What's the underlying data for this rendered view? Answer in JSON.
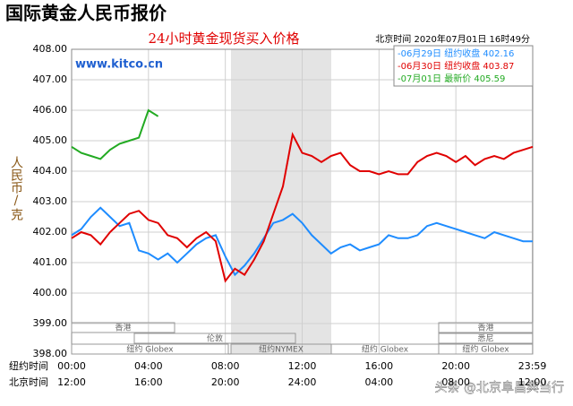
{
  "chart_data": {
    "type": "line",
    "title": "国际黄金人民币报价",
    "subtitle": "24小时黄金现货买入价格",
    "timestamp": "北京时间  2020年07月01日 16时49分",
    "source": "www.kitco.cn",
    "y_label": "人民币/克",
    "x_row_labels": [
      "纽约时间",
      "北京时间"
    ],
    "watermark": "头条 @北京阜昌典当行",
    "sessions": [
      "香港",
      "伦敦",
      "纽约 Globex",
      "纽约NYMEX",
      "纽约 Globex",
      "香港",
      "悉尼",
      "纽约 Globex"
    ],
    "x": [
      0,
      0.5,
      1,
      1.5,
      2,
      2.5,
      3,
      3.5,
      4,
      4.5,
      5,
      5.5,
      6,
      6.5,
      7,
      7.5,
      8,
      8.5,
      9,
      9.5,
      10,
      10.5,
      11,
      11.5,
      12,
      12.5,
      13,
      13.5,
      14,
      14.5,
      15,
      15.5,
      16,
      16.5,
      17,
      17.5,
      18,
      18.5,
      19,
      19.5,
      20,
      20.5,
      21,
      21.5,
      22,
      22.5,
      23,
      23.5,
      24
    ],
    "series": [
      {
        "name": "-06月29日  纽约收盘 402.16",
        "color": "#1e8cff",
        "values": [
          401.9,
          402.1,
          402.5,
          402.8,
          402.5,
          402.2,
          402.3,
          401.4,
          401.3,
          401.1,
          401.3,
          401.0,
          401.3,
          401.6,
          401.8,
          401.9,
          401.2,
          400.6,
          400.9,
          401.3,
          401.8,
          402.3,
          402.4,
          402.6,
          402.3,
          401.9,
          401.6,
          401.3,
          401.5,
          401.6,
          401.4,
          401.5,
          401.6,
          401.9,
          401.8,
          401.8,
          401.9,
          402.2,
          402.3,
          402.2,
          402.1,
          402.0,
          401.9,
          401.8,
          402.0,
          401.9,
          401.8,
          401.7,
          401.7
        ]
      },
      {
        "name": "-06月30日  纽约收盘 403.87",
        "color": "#e00000",
        "values": [
          401.8,
          402.0,
          401.9,
          401.6,
          402.0,
          402.3,
          402.6,
          402.7,
          402.4,
          402.3,
          401.9,
          401.8,
          401.5,
          401.8,
          402.0,
          401.7,
          400.4,
          400.8,
          400.6,
          401.1,
          401.7,
          402.6,
          403.5,
          405.2,
          404.6,
          404.5,
          404.3,
          404.5,
          404.6,
          404.2,
          404.0,
          404.0,
          403.9,
          404.0,
          403.9,
          403.9,
          404.3,
          404.5,
          404.6,
          404.5,
          404.3,
          404.5,
          404.2,
          404.4,
          404.5,
          404.4,
          404.6,
          404.7,
          404.8
        ]
      },
      {
        "name": "-07月01日    最新价 405.59",
        "color": "#22aa22",
        "values": [
          404.8,
          404.6,
          404.5,
          404.4,
          404.7,
          404.9,
          405.0,
          405.1,
          406.0,
          405.8,
          null,
          null,
          null,
          null,
          null,
          null,
          null,
          null,
          null,
          null,
          null,
          null,
          null,
          null,
          null,
          null,
          null,
          null,
          null,
          null,
          null,
          null,
          null,
          null,
          null,
          null,
          null,
          null,
          null,
          null,
          null,
          null,
          null,
          null,
          null,
          null,
          null,
          null,
          null
        ]
      }
    ],
    "xlim": [
      0,
      24
    ],
    "xticks": [
      {
        "value": 0,
        "label": "00:00"
      },
      {
        "value": 4,
        "label": "04:00"
      },
      {
        "value": 8,
        "label": "08:00"
      },
      {
        "value": 12,
        "label": "12:00"
      },
      {
        "value": 16,
        "label": "16:00"
      },
      {
        "value": 20,
        "label": "20:00"
      },
      {
        "value": 23.98,
        "label": "23:59"
      }
    ],
    "x2ticks": [
      {
        "value": 0,
        "label": "12:00"
      },
      {
        "value": 4,
        "label": "16:00"
      },
      {
        "value": 8,
        "label": "20:00"
      },
      {
        "value": 12,
        "label": "24:00"
      },
      {
        "value": 16,
        "label": "04:00"
      },
      {
        "value": 20,
        "label": "08:00"
      },
      {
        "value": 23.98,
        "label": "12:00"
      }
    ],
    "ylim": [
      398,
      408
    ],
    "yticks": [
      {
        "value": 398,
        "label": "398.00"
      },
      {
        "value": 399,
        "label": "399.00"
      },
      {
        "value": 400,
        "label": "400.00"
      },
      {
        "value": 401,
        "label": "401.00"
      },
      {
        "value": 402,
        "label": "402.00"
      },
      {
        "value": 403,
        "label": "403.00"
      },
      {
        "value": 404,
        "label": "404.00"
      },
      {
        "value": 405,
        "label": "405.00"
      },
      {
        "value": 406,
        "label": "406.00"
      },
      {
        "value": 407,
        "label": "407.00"
      },
      {
        "value": 408,
        "label": "408.00"
      }
    ],
    "grid": true
  }
}
